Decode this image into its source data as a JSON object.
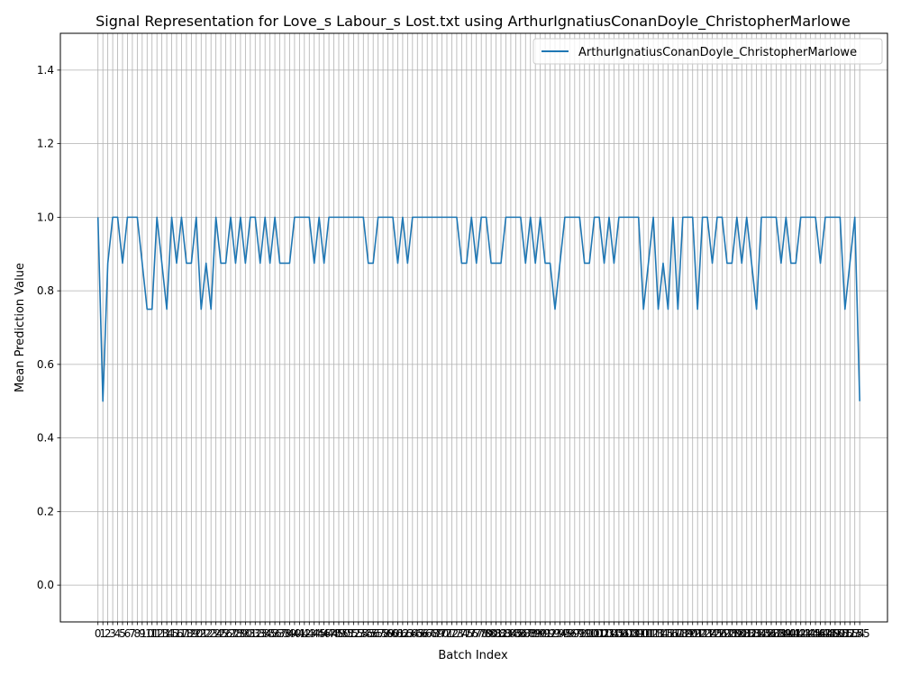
{
  "chart_data": {
    "type": "line",
    "title": "Signal Representation for Love_s Labour_s Lost.txt using ArthurIgnatiusConanDoyle_ChristopherMarlowe",
    "xlabel": "Batch Index",
    "ylabel": "Mean Prediction Value",
    "ylim": [
      -0.1,
      1.5
    ],
    "yticks": [
      0.0,
      0.2,
      0.4,
      0.6,
      0.8,
      1.0,
      1.2,
      1.4
    ],
    "grid": true,
    "legend_position": "top-right",
    "x_range": [
      0,
      153
    ],
    "series": [
      {
        "name": "ArthurIgnatiusConanDoyle_ChristopherMarlowe",
        "color": "#1f77b4",
        "values": [
          1.0,
          0.5,
          0.875,
          1.0,
          1.0,
          0.875,
          1.0,
          1.0,
          1.0,
          0.875,
          0.75,
          0.75,
          1.0,
          0.875,
          0.75,
          1.0,
          0.875,
          1.0,
          0.875,
          0.875,
          1.0,
          0.75,
          0.875,
          0.75,
          1.0,
          0.875,
          0.875,
          1.0,
          0.875,
          1.0,
          0.875,
          1.0,
          1.0,
          0.875,
          1.0,
          0.875,
          1.0,
          0.875,
          0.875,
          0.875,
          1.0,
          1.0,
          1.0,
          1.0,
          0.875,
          1.0,
          0.875,
          1.0,
          1.0,
          1.0,
          1.0,
          1.0,
          1.0,
          1.0,
          1.0,
          0.875,
          0.875,
          1.0,
          1.0,
          1.0,
          1.0,
          0.875,
          1.0,
          0.875,
          1.0,
          1.0,
          1.0,
          1.0,
          1.0,
          1.0,
          1.0,
          1.0,
          1.0,
          1.0,
          0.875,
          0.875,
          1.0,
          0.875,
          1.0,
          1.0,
          0.875,
          0.875,
          0.875,
          1.0,
          1.0,
          1.0,
          1.0,
          0.875,
          1.0,
          0.875,
          1.0,
          0.875,
          0.875,
          0.75,
          0.875,
          1.0,
          1.0,
          1.0,
          1.0,
          0.875,
          0.875,
          1.0,
          1.0,
          0.875,
          1.0,
          0.875,
          1.0,
          1.0,
          1.0,
          1.0,
          1.0,
          0.75,
          0.875,
          1.0,
          0.75,
          0.875,
          0.75,
          1.0,
          0.75,
          1.0,
          1.0,
          1.0,
          0.75,
          1.0,
          1.0,
          0.875,
          1.0,
          1.0,
          0.875,
          0.875,
          1.0,
          0.875,
          1.0,
          0.875,
          0.75,
          1.0,
          1.0,
          1.0,
          1.0,
          0.875,
          1.0,
          0.875,
          0.875,
          1.0,
          1.0,
          1.0,
          1.0,
          0.875,
          1.0,
          1.0,
          1.0,
          1.0,
          0.75,
          0.875,
          1.0,
          0.5
        ]
      }
    ]
  }
}
